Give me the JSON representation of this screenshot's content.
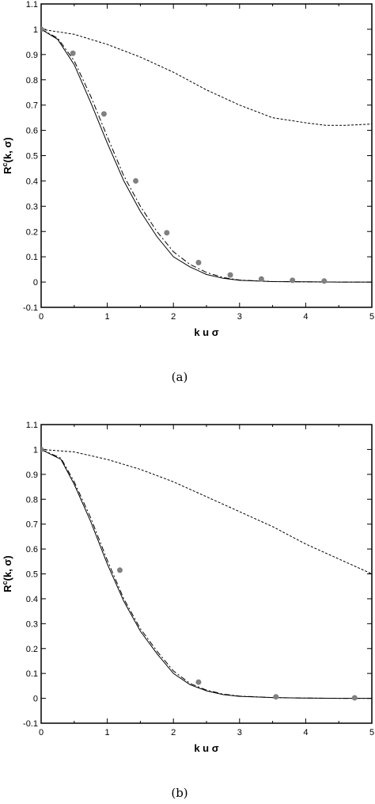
{
  "chart_data": [
    {
      "type": "line",
      "caption": "(a)",
      "xlabel": "k u σ",
      "ylabel_main": "R",
      "ylabel_sup": "c",
      "ylabel_rest": "(k, σ)",
      "xlim": [
        0,
        5
      ],
      "ylim": [
        -0.1,
        1.1
      ],
      "xticks": [
        "0",
        "1",
        "2",
        "3",
        "4",
        "5"
      ],
      "yticks": [
        "-0.1",
        "0",
        "0.1",
        "0.2",
        "0.3",
        "0.4",
        "0.5",
        "0.6",
        "0.7",
        "0.8",
        "0.9",
        "1",
        "1.1"
      ],
      "grid": false,
      "series": [
        {
          "style": "solid",
          "x": [
            0,
            0.25,
            0.5,
            0.75,
            1.0,
            1.25,
            1.5,
            1.75,
            2.0,
            2.25,
            2.5,
            2.75,
            3.0,
            3.5,
            4.0,
            4.5,
            5.0
          ],
          "y": [
            1.0,
            0.96,
            0.86,
            0.71,
            0.55,
            0.4,
            0.28,
            0.18,
            0.1,
            0.06,
            0.03,
            0.015,
            0.007,
            0.002,
            0.001,
            0.0,
            0.0
          ]
        },
        {
          "style": "dashdot",
          "x": [
            0,
            0.25,
            0.5,
            0.75,
            1.0,
            1.25,
            1.5,
            1.75,
            2.0,
            2.25,
            2.5,
            2.75,
            3.0,
            3.5,
            4.0,
            4.5,
            5.0
          ],
          "y": [
            1.0,
            0.965,
            0.875,
            0.735,
            0.575,
            0.42,
            0.3,
            0.2,
            0.12,
            0.07,
            0.038,
            0.018,
            0.008,
            0.002,
            0.001,
            0.0,
            0.0
          ]
        },
        {
          "style": "dashed",
          "x": [
            0,
            0.5,
            1.0,
            1.5,
            2.0,
            2.5,
            3.0,
            3.5,
            4.0,
            4.3,
            4.6,
            5.0
          ],
          "y": [
            1.0,
            0.98,
            0.94,
            0.89,
            0.83,
            0.76,
            0.7,
            0.65,
            0.63,
            0.62,
            0.62,
            0.625
          ]
        },
        {
          "style": "markers",
          "x": [
            0,
            0.48,
            0.95,
            1.43,
            1.9,
            2.38,
            2.86,
            3.33,
            3.8,
            4.28
          ],
          "y": [
            1.0,
            0.905,
            0.665,
            0.4,
            0.195,
            0.077,
            0.028,
            0.012,
            0.007,
            0.004
          ]
        }
      ]
    },
    {
      "type": "line",
      "caption": "(b)",
      "xlabel": "k u σ",
      "ylabel_main": "R",
      "ylabel_sup": "c",
      "ylabel_rest": "(k, σ)",
      "xlim": [
        0,
        5
      ],
      "ylim": [
        -0.1,
        1.1
      ],
      "xticks": [
        "0",
        "1",
        "2",
        "3",
        "4",
        "5"
      ],
      "yticks": [
        "-0.1",
        "0",
        "0.1",
        "0.2",
        "0.3",
        "0.4",
        "0.5",
        "0.6",
        "0.7",
        "0.8",
        "0.9",
        "1",
        "1.1"
      ],
      "grid": false,
      "series": [
        {
          "style": "solid",
          "x": [
            0,
            0.3,
            0.5,
            0.75,
            1.0,
            1.25,
            1.5,
            1.75,
            2.0,
            2.25,
            2.5,
            2.75,
            3.0,
            3.5,
            4.0,
            4.5,
            5.0
          ],
          "y": [
            1.0,
            0.96,
            0.86,
            0.71,
            0.54,
            0.39,
            0.27,
            0.18,
            0.1,
            0.055,
            0.03,
            0.015,
            0.008,
            0.003,
            0.001,
            0.0,
            0.0
          ]
        },
        {
          "style": "dashdot",
          "x": [
            0,
            0.3,
            0.5,
            0.75,
            1.0,
            1.25,
            1.5,
            1.75,
            2.0,
            2.25,
            2.5,
            2.75,
            3.0,
            3.5,
            4.0,
            4.5,
            5.0
          ],
          "y": [
            1.0,
            0.965,
            0.87,
            0.725,
            0.555,
            0.4,
            0.28,
            0.19,
            0.11,
            0.06,
            0.033,
            0.017,
            0.009,
            0.003,
            0.001,
            0.0,
            0.0
          ]
        },
        {
          "style": "dashed",
          "x": [
            0,
            0.5,
            1.0,
            1.5,
            2.0,
            2.5,
            3.0,
            3.5,
            4.0,
            4.5,
            5.0
          ],
          "y": [
            1.0,
            0.99,
            0.96,
            0.92,
            0.87,
            0.81,
            0.75,
            0.69,
            0.62,
            0.56,
            0.5
          ]
        },
        {
          "style": "markers",
          "x": [
            0,
            1.19,
            2.38,
            3.55,
            4.74
          ],
          "y": [
            1.0,
            0.515,
            0.065,
            0.006,
            0.002
          ]
        }
      ]
    }
  ]
}
